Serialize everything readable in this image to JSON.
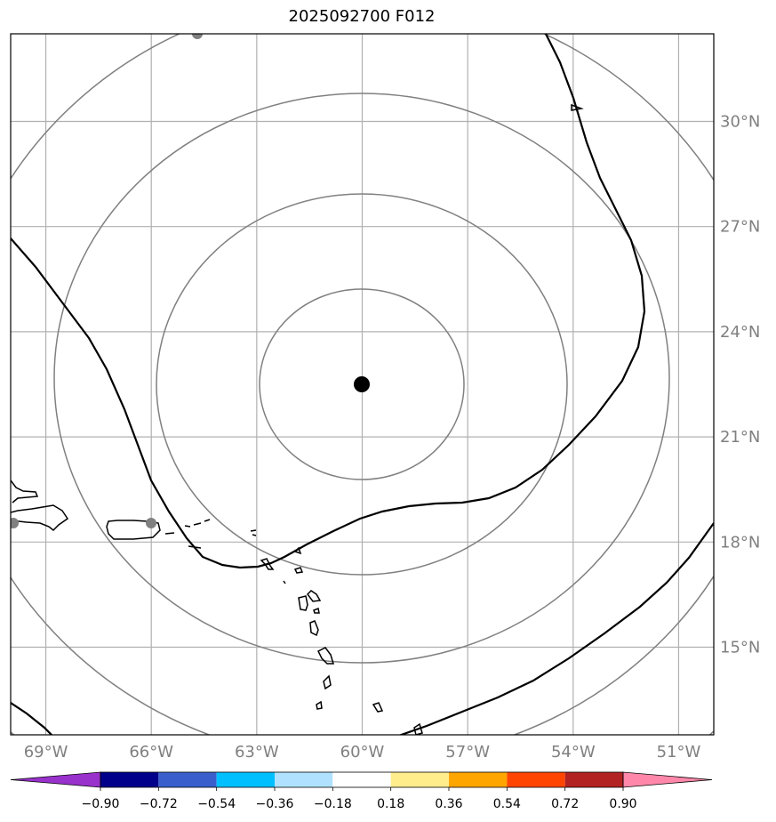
{
  "title": "2025092700 F012",
  "map": {
    "lon_range": [
      -70.0,
      -50.0
    ],
    "lat_range": [
      12.5,
      32.5
    ],
    "gridlines": true,
    "lon_ticks": [
      -69,
      -66,
      -63,
      -60,
      -57,
      -54,
      -51
    ],
    "lat_ticks": [
      15,
      18,
      21,
      24,
      27,
      30
    ],
    "lon_labels": [
      "69°W",
      "66°W",
      "63°W",
      "60°W",
      "57°W",
      "54°W",
      "51°W"
    ],
    "lat_labels": [
      "15°N",
      "18°N",
      "21°N",
      "24°N",
      "27°N",
      "30°N"
    ],
    "center_marker": {
      "lon": -60.0,
      "lat": 22.4,
      "color": "#000000"
    },
    "range_rings_color": "#808080",
    "gray_markers": [
      {
        "lon": -70.0,
        "lat": 18.4
      },
      {
        "lon": -66.0,
        "lat": 18.4
      },
      {
        "lon": -64.7,
        "lat": 32.5
      }
    ],
    "contour_color": "#000000",
    "grid_color": "#b0b0b0"
  },
  "colorbar": {
    "ticks": [
      "−0.90",
      "−0.72",
      "−0.54",
      "−0.36",
      "−0.18",
      "0.18",
      "0.36",
      "0.54",
      "0.72",
      "0.90"
    ],
    "colors": [
      "#9932cc",
      "#00008b",
      "#3a5fcd",
      "#00bfff",
      "#b0e2ff",
      "#ffffff",
      "#ffec8b",
      "#ffa500",
      "#ff4500",
      "#b22222",
      "#ff88aa"
    ]
  }
}
